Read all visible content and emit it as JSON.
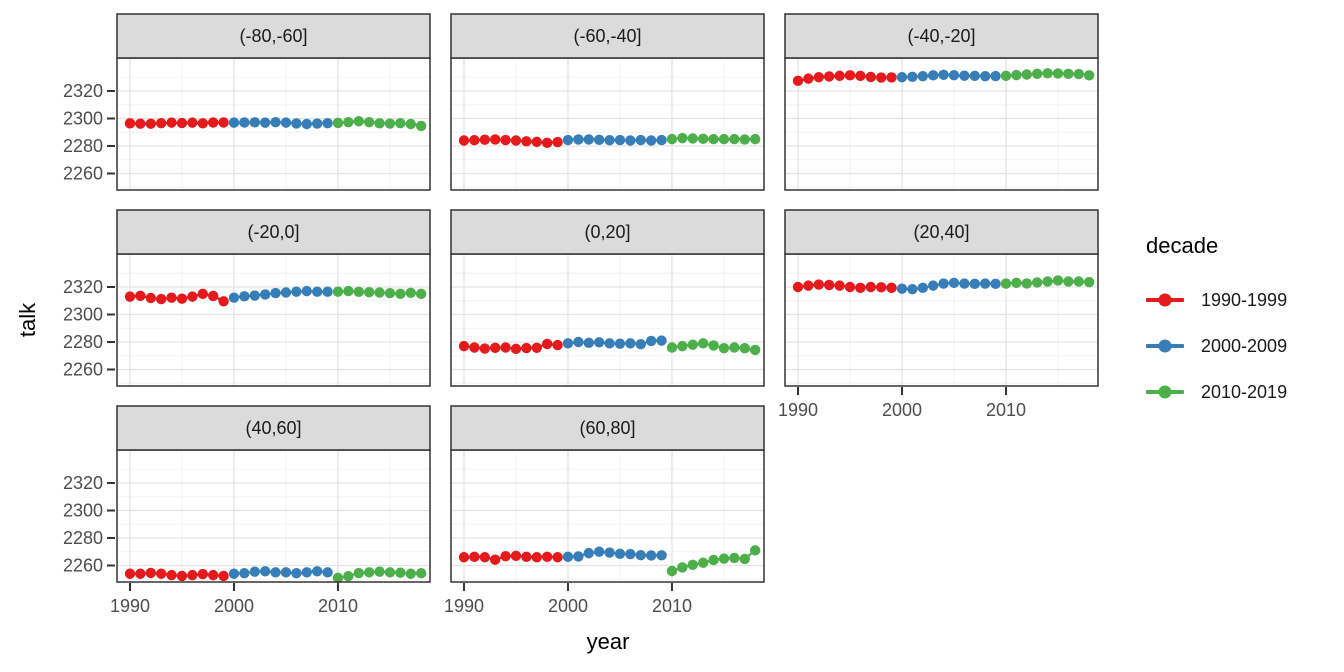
{
  "chart_data": {
    "type": "scatter",
    "title": "",
    "xlabel": "year",
    "ylabel": "talk",
    "xlim": [
      1988.75,
      2018.85
    ],
    "ylim": [
      2248,
      2344
    ],
    "x_ticks": [
      1990,
      2000,
      2010
    ],
    "x_minor_ticks": [
      1995,
      2005,
      2015
    ],
    "y_ticks": [
      2260,
      2280,
      2300,
      2320
    ],
    "y_minor_ticks": [
      2250,
      2270,
      2290,
      2310,
      2330
    ],
    "grid": true,
    "legend_position": "right",
    "legend": {
      "title": "decade",
      "entries": [
        {
          "label": "1990-1999",
          "color": "#E41A1C"
        },
        {
          "label": "2000-2009",
          "color": "#377EB8"
        },
        {
          "label": "2010-2019",
          "color": "#4DAF4A"
        }
      ]
    },
    "facets": [
      {
        "label": "(-80,-60]",
        "series": [
          {
            "name": "1990-1999",
            "start_year": 1990,
            "values": [
              2296.5,
              2296.2,
              2296.2,
              2296.6,
              2297,
              2296.7,
              2297,
              2296.5,
              2297.1,
              2297.1
            ]
          },
          {
            "name": "2000-2009",
            "start_year": 2000,
            "values": [
              2297,
              2297.1,
              2297.2,
              2297,
              2297.3,
              2297,
              2296.4,
              2296,
              2296.3,
              2296.6
            ]
          },
          {
            "name": "2010-2019",
            "start_year": 2010,
            "values": [
              2296.8,
              2297.3,
              2298,
              2297.3,
              2296.5,
              2296.3,
              2296.6,
              2296,
              2294.6
            ]
          }
        ]
      },
      {
        "label": "(-60,-40]",
        "series": [
          {
            "name": "1990-1999",
            "start_year": 1990,
            "values": [
              2284,
              2284.2,
              2284.6,
              2284.8,
              2284.3,
              2284,
              2283.4,
              2283,
              2282.3,
              2282.9
            ]
          },
          {
            "name": "2000-2009",
            "start_year": 2000,
            "values": [
              2284.3,
              2284.8,
              2284.8,
              2284.5,
              2284.2,
              2284.3,
              2284,
              2284.3,
              2284,
              2284.3
            ]
          },
          {
            "name": "2010-2019",
            "start_year": 2010,
            "values": [
              2285,
              2285.8,
              2285.5,
              2285.2,
              2285,
              2285,
              2285,
              2284.8,
              2285
            ]
          }
        ]
      },
      {
        "label": "(-40,-20]",
        "series": [
          {
            "name": "1990-1999",
            "start_year": 1990,
            "values": [
              2327.4,
              2329,
              2330,
              2330.6,
              2331,
              2331.4,
              2331,
              2330.2,
              2329.8,
              2329.9
            ]
          },
          {
            "name": "2000-2009",
            "start_year": 2000,
            "values": [
              2330,
              2330.3,
              2330.8,
              2331.4,
              2331.8,
              2331.5,
              2331.1,
              2331,
              2330.8,
              2330.9
            ]
          },
          {
            "name": "2010-2019",
            "start_year": 2010,
            "values": [
              2331,
              2331.6,
              2332,
              2332.5,
              2332.9,
              2332.8,
              2332.5,
              2332.3,
              2331.4
            ]
          }
        ]
      },
      {
        "label": "(-20,0]",
        "series": [
          {
            "name": "1990-1999",
            "start_year": 1990,
            "values": [
              2313,
              2313.6,
              2312,
              2311.2,
              2312.2,
              2311.5,
              2313,
              2315,
              2313.5,
              2309.6
            ]
          },
          {
            "name": "2000-2009",
            "start_year": 2000,
            "values": [
              2312.2,
              2313.2,
              2313.8,
              2314.6,
              2315.6,
              2316,
              2316.6,
              2317,
              2316.6,
              2316.6
            ]
          },
          {
            "name": "2010-2019",
            "start_year": 2010,
            "values": [
              2316.6,
              2317,
              2316.5,
              2316.2,
              2316,
              2315.5,
              2315,
              2315.8,
              2315
            ]
          }
        ]
      },
      {
        "label": "(0,20]",
        "series": [
          {
            "name": "1990-1999",
            "start_year": 1990,
            "values": [
              2277,
              2276,
              2275.2,
              2275.8,
              2276,
              2275,
              2275.6,
              2275.8,
              2278.6,
              2277.8
            ]
          },
          {
            "name": "2000-2009",
            "start_year": 2000,
            "values": [
              2279,
              2280,
              2279.4,
              2279.8,
              2279,
              2278.8,
              2279,
              2278.4,
              2280.8,
              2281
            ]
          },
          {
            "name": "2010-2019",
            "start_year": 2010,
            "values": [
              2276,
              2277,
              2278,
              2279,
              2277.5,
              2275.5,
              2276,
              2275.5,
              2274.2
            ]
          }
        ]
      },
      {
        "label": "(20,40]",
        "series": [
          {
            "name": "1990-1999",
            "start_year": 1990,
            "values": [
              2320,
              2321,
              2321.8,
              2321.5,
              2321,
              2320,
              2319.4,
              2320,
              2319.8,
              2319.4
            ]
          },
          {
            "name": "2000-2009",
            "start_year": 2000,
            "values": [
              2318.8,
              2318.4,
              2319.4,
              2321,
              2322.5,
              2323,
              2322.5,
              2322.3,
              2322.5,
              2322.3
            ]
          },
          {
            "name": "2010-2019",
            "start_year": 2010,
            "values": [
              2322.5,
              2323,
              2322.6,
              2323.3,
              2324,
              2324.8,
              2324,
              2324,
              2323.6
            ]
          }
        ]
      },
      {
        "label": "(40,60]",
        "series": [
          {
            "name": "1990-1999",
            "start_year": 1990,
            "values": [
              2254,
              2254,
              2254.6,
              2254,
              2253,
              2252.4,
              2253,
              2253.8,
              2253,
              2252.4
            ]
          },
          {
            "name": "2000-2009",
            "start_year": 2000,
            "values": [
              2254,
              2254.4,
              2255.5,
              2255.8,
              2255,
              2255,
              2254.4,
              2255,
              2255.8,
              2255
            ]
          },
          {
            "name": "2010-2019",
            "start_year": 2010,
            "values": [
              2251,
              2252.2,
              2254.5,
              2255,
              2255.5,
              2255,
              2254.8,
              2254,
              2254.4
            ]
          }
        ]
      },
      {
        "label": "(60,80]",
        "series": [
          {
            "name": "1990-1999",
            "start_year": 1990,
            "values": [
              2266,
              2266.3,
              2266,
              2264.2,
              2266.8,
              2267,
              2266.3,
              2266,
              2266.3,
              2266
            ]
          },
          {
            "name": "2000-2009",
            "start_year": 2000,
            "values": [
              2266.3,
              2266.6,
              2269,
              2270,
              2269.4,
              2268.5,
              2268.3,
              2267.5,
              2267.3,
              2267.4
            ]
          },
          {
            "name": "2010-2019",
            "start_year": 2010,
            "values": [
              2256,
              2258.6,
              2260.5,
              2262,
              2264,
              2265,
              2265.5,
              2264.8,
              2271
            ]
          }
        ]
      }
    ],
    "style_colors": {
      "strip_bg": "#DBDBDB",
      "panel_border": "#333333",
      "grid_major": "#E4E4E4",
      "grid_minor": "#F2F2F2",
      "tick_mark": "#333333",
      "tick_text": "#4D4D4D",
      "strip_text": "#1A1A1A"
    }
  }
}
